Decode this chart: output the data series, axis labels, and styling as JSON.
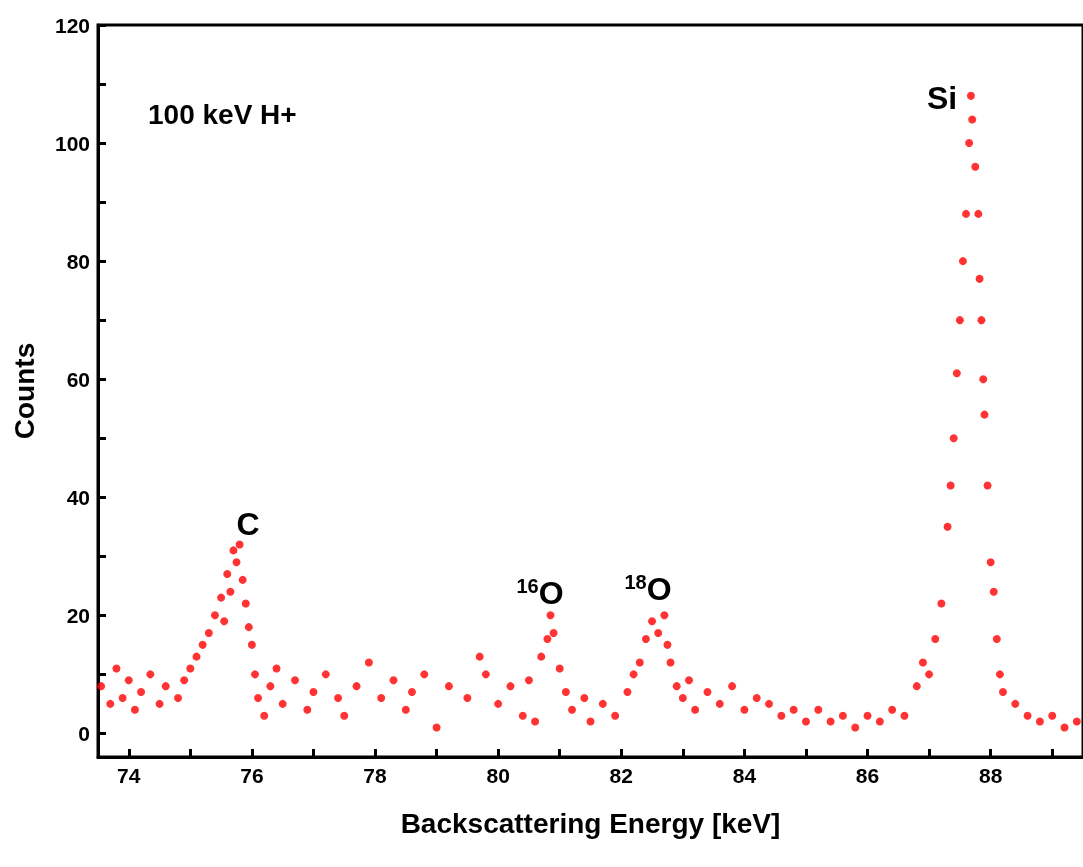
{
  "chart_data": {
    "type": "scatter",
    "xlabel": "Backscattering Energy [keV]",
    "ylabel": "Counts",
    "marker": "circle",
    "grid": false,
    "xlim": [
      73.5,
      89.5
    ],
    "xticks": [
      74,
      {
        "value": 75,
        "label": null
      },
      76,
      {
        "value": 77,
        "label": null
      },
      78,
      {
        "value": 79,
        "label": null
      },
      80,
      {
        "value": 81,
        "label": null
      },
      82,
      {
        "value": 83,
        "label": null
      },
      84,
      {
        "value": 85,
        "label": null
      },
      86,
      {
        "value": 87,
        "label": null
      },
      88,
      {
        "value": 89,
        "label": null
      }
    ],
    "ylim": [
      -4,
      120
    ],
    "yticks": [
      0,
      {
        "value": 10,
        "label": null
      },
      20,
      {
        "value": 30,
        "label": null
      },
      40,
      {
        "value": 50,
        "label": null
      },
      60,
      {
        "value": 70,
        "label": null
      },
      80,
      {
        "value": 90,
        "label": null
      },
      100,
      {
        "value": 110,
        "label": null
      },
      120
    ],
    "annotations": [
      "100 keV H+",
      "C",
      "$^{16}$O",
      "$^{18}$O",
      "Si"
    ],
    "series": [
      {
        "color": "#ff0000",
        "x": [
          73.55,
          73.7,
          73.8,
          73.9,
          74.0,
          74.1,
          74.2,
          74.35,
          74.5,
          74.6,
          74.8,
          74.9,
          75.0,
          75.1,
          75.2,
          75.3,
          75.4,
          75.5,
          75.55,
          75.6,
          75.65,
          75.7,
          75.75,
          75.8,
          75.85,
          75.9,
          75.95,
          76.0,
          76.05,
          76.1,
          76.2,
          76.3,
          76.4,
          76.5,
          76.7,
          76.9,
          77.0,
          77.2,
          77.4,
          77.5,
          77.7,
          77.9,
          78.1,
          78.3,
          78.5,
          78.6,
          78.8,
          79.0,
          79.2,
          79.5,
          79.7,
          79.8,
          80.0,
          80.2,
          80.4,
          80.5,
          80.6,
          80.7,
          80.8,
          80.85,
          80.9,
          81.0,
          81.1,
          81.2,
          81.4,
          81.5,
          81.7,
          81.9,
          82.1,
          82.2,
          82.3,
          82.4,
          82.5,
          82.6,
          82.7,
          82.75,
          82.8,
          82.9,
          83.0,
          83.1,
          83.2,
          83.4,
          83.6,
          83.8,
          84.0,
          84.2,
          84.4,
          84.6,
          84.8,
          85.0,
          85.2,
          85.4,
          85.6,
          85.8,
          86.0,
          86.2,
          86.4,
          86.6,
          86.8,
          86.9,
          87.0,
          87.1,
          87.2,
          87.3,
          87.35,
          87.4,
          87.45,
          87.5,
          87.55,
          87.6,
          87.65,
          87.68,
          87.7,
          87.75,
          87.8,
          87.82,
          87.85,
          87.88,
          87.9,
          87.95,
          88.0,
          88.05,
          88.1,
          88.15,
          88.2,
          88.4,
          88.6,
          88.8,
          89.0,
          89.2,
          89.4
        ],
        "values": [
          8,
          5,
          11,
          6,
          9,
          4,
          7,
          10,
          5,
          8,
          6,
          9,
          11,
          13,
          15,
          17,
          20,
          23,
          19,
          27,
          24,
          31,
          29,
          32,
          26,
          22,
          18,
          15,
          10,
          6,
          3,
          8,
          11,
          5,
          9,
          4,
          7,
          10,
          6,
          3,
          8,
          12,
          6,
          9,
          4,
          7,
          10,
          1,
          8,
          6,
          13,
          10,
          5,
          8,
          3,
          9,
          2,
          13,
          16,
          20,
          17,
          11,
          7,
          4,
          6,
          2,
          5,
          3,
          7,
          10,
          12,
          16,
          19,
          17,
          20,
          15,
          12,
          8,
          6,
          9,
          4,
          7,
          5,
          8,
          4,
          6,
          5,
          3,
          4,
          2,
          4,
          2,
          3,
          1,
          3,
          2,
          4,
          3,
          8,
          12,
          10,
          16,
          22,
          35,
          42,
          50,
          61,
          70,
          80,
          88,
          100,
          108,
          104,
          96,
          88,
          77,
          70,
          60,
          54,
          42,
          29,
          24,
          16,
          10,
          7,
          5,
          3,
          2,
          3,
          1,
          2
        ]
      }
    ]
  }
}
